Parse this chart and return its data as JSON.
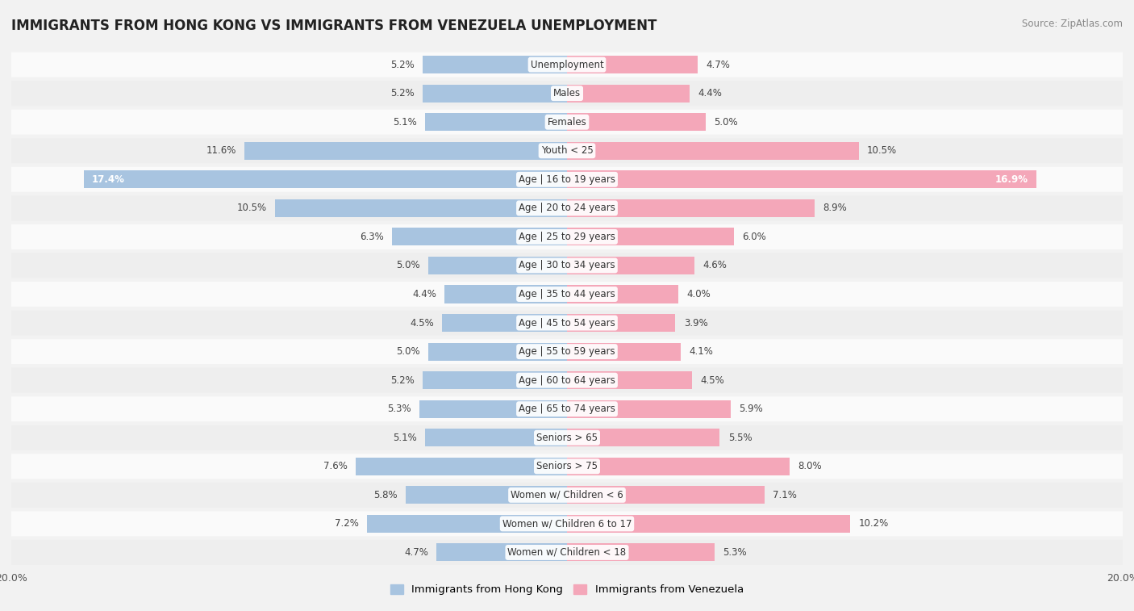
{
  "title": "IMMIGRANTS FROM HONG KONG VS IMMIGRANTS FROM VENEZUELA UNEMPLOYMENT",
  "source": "Source: ZipAtlas.com",
  "categories": [
    "Unemployment",
    "Males",
    "Females",
    "Youth < 25",
    "Age | 16 to 19 years",
    "Age | 20 to 24 years",
    "Age | 25 to 29 years",
    "Age | 30 to 34 years",
    "Age | 35 to 44 years",
    "Age | 45 to 54 years",
    "Age | 55 to 59 years",
    "Age | 60 to 64 years",
    "Age | 65 to 74 years",
    "Seniors > 65",
    "Seniors > 75",
    "Women w/ Children < 6",
    "Women w/ Children 6 to 17",
    "Women w/ Children < 18"
  ],
  "hong_kong": [
    5.2,
    5.2,
    5.1,
    11.6,
    17.4,
    10.5,
    6.3,
    5.0,
    4.4,
    4.5,
    5.0,
    5.2,
    5.3,
    5.1,
    7.6,
    5.8,
    7.2,
    4.7
  ],
  "venezuela": [
    4.7,
    4.4,
    5.0,
    10.5,
    16.9,
    8.9,
    6.0,
    4.6,
    4.0,
    3.9,
    4.1,
    4.5,
    5.9,
    5.5,
    8.0,
    7.1,
    10.2,
    5.3
  ],
  "hong_kong_color": "#a8c4e0",
  "venezuela_color": "#f4a7b9",
  "background_color": "#f2f2f2",
  "row_bg_colors": [
    "#fafafa",
    "#eeeeee"
  ],
  "axis_limit": 20.0,
  "legend_hk": "Immigrants from Hong Kong",
  "legend_ven": "Immigrants from Venezuela",
  "label_inside_threshold": 14.0
}
